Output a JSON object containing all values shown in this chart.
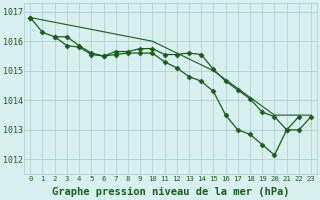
{
  "title": "Graphe pression niveau de la mer (hPa)",
  "x_labels": [
    "0",
    "1",
    "2",
    "3",
    "4",
    "5",
    "6",
    "7",
    "8",
    "9",
    "10",
    "11",
    "12",
    "13",
    "14",
    "15",
    "16",
    "17",
    "18",
    "19",
    "20",
    "21",
    "22",
    "23"
  ],
  "series_straight": [
    1016.8,
    1016.72,
    1016.64,
    1016.56,
    1016.48,
    1016.4,
    1016.32,
    1016.24,
    1016.16,
    1016.08,
    1016.0,
    1015.8,
    1015.6,
    1015.4,
    1015.2,
    1015.0,
    1014.7,
    1014.4,
    1014.1,
    1013.8,
    1013.5,
    1013.5,
    1013.5,
    1013.5
  ],
  "series1": [
    1016.8,
    1016.3,
    1016.15,
    1015.85,
    1015.8,
    1015.55,
    1015.5,
    1015.65,
    1015.65,
    1015.75,
    1015.75,
    1015.55,
    1015.55,
    1015.6,
    1015.55,
    1015.05,
    1014.65,
    1014.35,
    1014.05,
    1013.6,
    1013.45,
    1013.0,
    1013.0,
    1013.45
  ],
  "series2": [
    1016.8,
    null,
    1016.15,
    1016.15,
    1015.85,
    1015.6,
    1015.5,
    1015.55,
    1015.6,
    1015.6,
    1015.6,
    1015.3,
    1015.1,
    1014.8,
    1014.65,
    1014.3,
    1013.5,
    1013.0,
    1012.85,
    1012.5,
    1012.15,
    1013.0,
    1013.45,
    null
  ],
  "line_color": "#1a5c1a",
  "marker": "D",
  "marker_size": 2.5,
  "background_color": "#d8f0f0",
  "grid_color": "#aacccc",
  "ylim": [
    1011.5,
    1017.3
  ],
  "yticks": [
    1012,
    1013,
    1014,
    1015,
    1016,
    1017
  ],
  "title_fontsize": 7.5,
  "title_color": "#1a5c1a"
}
